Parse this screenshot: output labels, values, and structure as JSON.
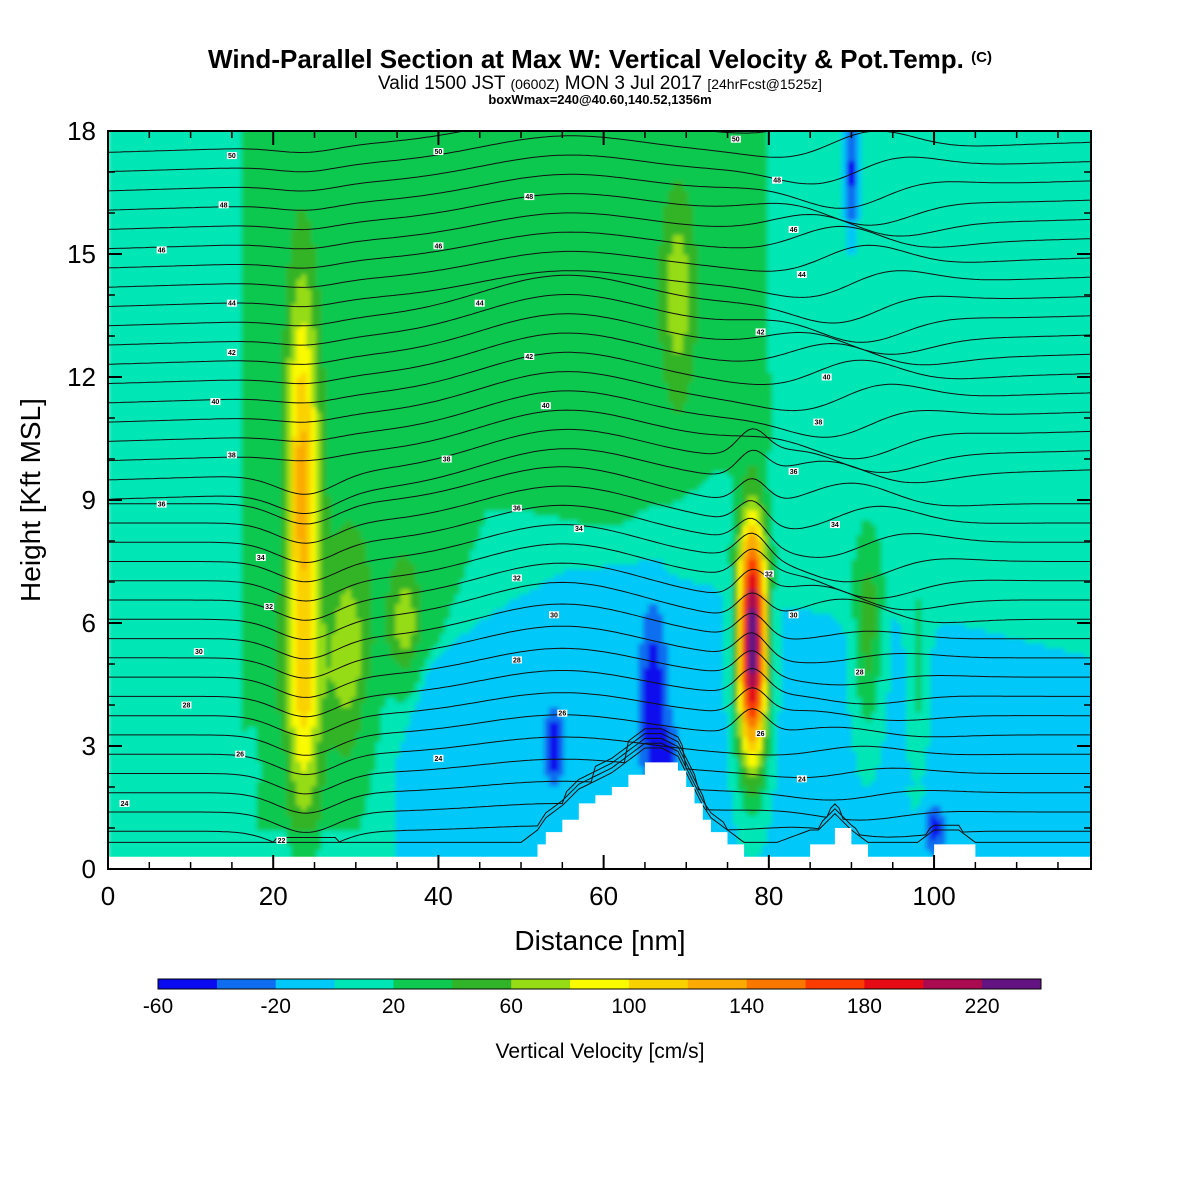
{
  "title": {
    "main": "Wind-Parallel Section at Max W: Vertical Velocity & Pot.Temp.",
    "copyright": "(C)",
    "valid_prefix": "Valid 1500 JST",
    "valid_utc": "(0600Z)",
    "valid_date": "MON 3 Jul 2017",
    "forecast": "[24hrFcst@1525z]",
    "box_info": "boxWmax=240@40.60,140.52,1356m"
  },
  "chart_data": {
    "type": "heatmap",
    "xlabel": "Distance [nm]",
    "ylabel": "Height [Kft MSL]",
    "xlim": [
      0,
      119
    ],
    "ylim": [
      0,
      18
    ],
    "x_ticks": [
      0,
      20,
      40,
      60,
      80,
      100
    ],
    "y_ticks": [
      0,
      3,
      6,
      9,
      12,
      15,
      18
    ],
    "colorbar": {
      "label": "Vertical Velocity [cm/s]",
      "levels": [
        -60,
        -40,
        -20,
        0,
        20,
        40,
        60,
        80,
        100,
        120,
        140,
        160,
        180,
        200,
        220,
        240
      ],
      "tick_labels": [
        "-60",
        "-20",
        "20",
        "60",
        "100",
        "140",
        "180",
        "220"
      ],
      "colors": [
        "#0a0aee",
        "#0f6ef0",
        "#00c8f8",
        "#00e6b4",
        "#0ec850",
        "#32b428",
        "#96dc14",
        "#fafa00",
        "#fad200",
        "#faaa00",
        "#fa7800",
        "#fa3c00",
        "#e60a14",
        "#aa0a50",
        "#641482"
      ]
    },
    "background_w": 10,
    "features": [
      {
        "name": "green-upper-band",
        "w": 30,
        "x": [
          18,
          85
        ],
        "y": [
          6,
          18
        ]
      },
      {
        "name": "ascent-core-22nm",
        "w": 100,
        "x": 23.5,
        "y": 9.5
      },
      {
        "name": "ascent-core-68nm",
        "w": 70,
        "x": 69,
        "y": 14
      },
      {
        "name": "ascent-core-78nm",
        "w": 240,
        "x": 78,
        "y": 6
      },
      {
        "name": "ascent-core-92nm",
        "w": 70,
        "x": 92,
        "y": 5.5
      },
      {
        "name": "descent-core-65nm",
        "w": -40,
        "x": 66,
        "y": 4
      },
      {
        "name": "descent-core-54nm",
        "w": -40,
        "x": 54,
        "y": 3
      },
      {
        "name": "descent-core-90nm",
        "w": -40,
        "x": 90,
        "y": 17
      }
    ],
    "terrain": {
      "x": [
        0,
        50,
        52,
        53,
        55,
        57,
        59,
        61,
        63,
        65,
        67,
        69,
        70,
        71,
        72,
        73,
        75,
        77,
        79,
        81,
        85,
        86,
        88,
        90,
        92,
        95,
        98,
        100,
        103,
        105,
        119
      ],
      "h": [
        0.3,
        0.3,
        0.6,
        0.9,
        1.2,
        1.6,
        1.8,
        2.0,
        2.3,
        2.6,
        2.6,
        2.4,
        2.0,
        1.6,
        1.2,
        0.9,
        0.6,
        0.3,
        0.3,
        0.3,
        0.6,
        0.6,
        1.0,
        0.6,
        0.3,
        0.3,
        0.3,
        0.6,
        0.6,
        0.3,
        0.3
      ]
    },
    "theta_labels": [
      {
        "text": "50",
        "x": 15,
        "y": 17.4
      },
      {
        "text": "50",
        "x": 40,
        "y": 17.5
      },
      {
        "text": "50",
        "x": 76,
        "y": 17.8
      },
      {
        "text": "48",
        "x": 14,
        "y": 16.2
      },
      {
        "text": "48",
        "x": 51,
        "y": 16.4
      },
      {
        "text": "48",
        "x": 81,
        "y": 16.8
      },
      {
        "text": "46",
        "x": 6.5,
        "y": 15.1
      },
      {
        "text": "46",
        "x": 40,
        "y": 15.2
      },
      {
        "text": "46",
        "x": 83,
        "y": 15.6
      },
      {
        "text": "44",
        "x": 15,
        "y": 13.8
      },
      {
        "text": "44",
        "x": 45,
        "y": 13.8
      },
      {
        "text": "44",
        "x": 84,
        "y": 14.5
      },
      {
        "text": "42",
        "x": 15,
        "y": 12.6
      },
      {
        "text": "42",
        "x": 51,
        "y": 12.5
      },
      {
        "text": "42",
        "x": 79,
        "y": 13.1
      },
      {
        "text": "40",
        "x": 13,
        "y": 11.4
      },
      {
        "text": "40",
        "x": 53,
        "y": 11.3
      },
      {
        "text": "40",
        "x": 87,
        "y": 12
      },
      {
        "text": "38",
        "x": 15,
        "y": 10.1
      },
      {
        "text": "38",
        "x": 41,
        "y": 10
      },
      {
        "text": "38",
        "x": 86,
        "y": 10.9
      },
      {
        "text": "36",
        "x": 6.5,
        "y": 8.9
      },
      {
        "text": "36",
        "x": 49.5,
        "y": 8.8
      },
      {
        "text": "36",
        "x": 83,
        "y": 9.7
      },
      {
        "text": "34",
        "x": 18.5,
        "y": 7.6
      },
      {
        "text": "34",
        "x": 57,
        "y": 8.3
      },
      {
        "text": "34",
        "x": 88,
        "y": 8.4
      },
      {
        "text": "32",
        "x": 19.5,
        "y": 6.4
      },
      {
        "text": "32",
        "x": 49.5,
        "y": 7.1
      },
      {
        "text": "32",
        "x": 80,
        "y": 7.2
      },
      {
        "text": "30",
        "x": 11,
        "y": 5.3
      },
      {
        "text": "30",
        "x": 54,
        "y": 6.2
      },
      {
        "text": "30",
        "x": 83,
        "y": 6.2
      },
      {
        "text": "28",
        "x": 9.5,
        "y": 4.0
      },
      {
        "text": "28",
        "x": 49.5,
        "y": 5.1
      },
      {
        "text": "28",
        "x": 91,
        "y": 4.8
      },
      {
        "text": "26",
        "x": 16,
        "y": 2.8
      },
      {
        "text": "26",
        "x": 55,
        "y": 3.8
      },
      {
        "text": "26",
        "x": 79,
        "y": 3.3
      },
      {
        "text": "24",
        "x": 2,
        "y": 1.6
      },
      {
        "text": "24",
        "x": 40,
        "y": 2.7
      },
      {
        "text": "24",
        "x": 84,
        "y": 2.2
      },
      {
        "text": "22",
        "x": 21,
        "y": 0.7
      }
    ]
  }
}
